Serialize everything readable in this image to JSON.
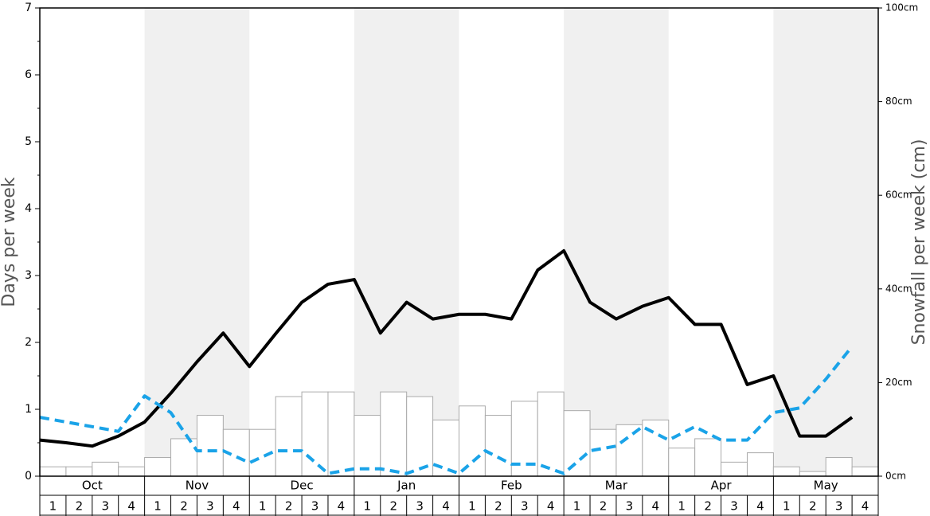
{
  "chart_data": {
    "type": "bar",
    "y_label": "Days per week",
    "y2_label": "Snowfall per week (cm)",
    "months": [
      "Oct",
      "Nov",
      "Dec",
      "Jan",
      "Feb",
      "Mar",
      "Apr",
      "May"
    ],
    "categories": [
      "1",
      "2",
      "3",
      "4",
      "1",
      "2",
      "3",
      "4",
      "1",
      "2",
      "3",
      "4",
      "1",
      "2",
      "3",
      "4",
      "1",
      "2",
      "3",
      "4",
      "1",
      "2",
      "3",
      "4",
      "1",
      "2",
      "3",
      "4",
      "1",
      "2",
      "3",
      "4"
    ],
    "ylim": [
      0,
      7
    ],
    "yticks": [
      0,
      1,
      2,
      3,
      4,
      5,
      6,
      7
    ],
    "y2lim": [
      0,
      100
    ],
    "y2ticks": [
      {
        "value": 0,
        "label": "0cm"
      },
      {
        "value": 20,
        "label": "20cm"
      },
      {
        "value": 40,
        "label": "40cm"
      },
      {
        "value": 60,
        "label": "60cm"
      },
      {
        "value": 80,
        "label": "80cm"
      },
      {
        "value": 100,
        "label": "100cm"
      }
    ],
    "series": [
      {
        "type": "bar",
        "axis": "y2",
        "color": "#ffffff",
        "stroke": "#aaaaaa",
        "values": [
          2,
          2,
          3,
          2,
          4,
          8,
          13,
          10,
          10,
          17,
          18,
          18,
          13,
          18,
          17,
          12,
          15,
          13,
          16,
          18,
          14,
          10,
          11,
          12,
          6,
          8,
          3,
          5,
          2,
          1,
          4,
          2
        ]
      },
      {
        "type": "line",
        "color": "#000000",
        "dashed": false,
        "values": [
          0.54,
          0.5,
          0.45,
          0.6,
          0.81,
          1.24,
          1.71,
          2.14,
          1.64,
          2.13,
          2.6,
          2.87,
          2.94,
          2.14,
          2.6,
          2.35,
          2.42,
          2.42,
          2.35,
          3.08,
          3.37,
          2.6,
          2.35,
          2.54,
          2.67,
          2.27,
          2.27,
          1.37,
          1.5,
          0.6,
          0.6,
          0.88
        ]
      },
      {
        "type": "line",
        "color": "#1aa3e8",
        "dashed": true,
        "values": [
          0.88,
          0.81,
          0.74,
          0.67,
          1.2,
          0.95,
          0.38,
          0.38,
          0.2,
          0.38,
          0.38,
          0.04,
          0.11,
          0.11,
          0.04,
          0.18,
          0.04,
          0.38,
          0.18,
          0.18,
          0.04,
          0.38,
          0.45,
          0.74,
          0.54,
          0.74,
          0.54,
          0.54,
          0.95,
          1.02,
          1.45,
          1.94
        ]
      }
    ]
  }
}
